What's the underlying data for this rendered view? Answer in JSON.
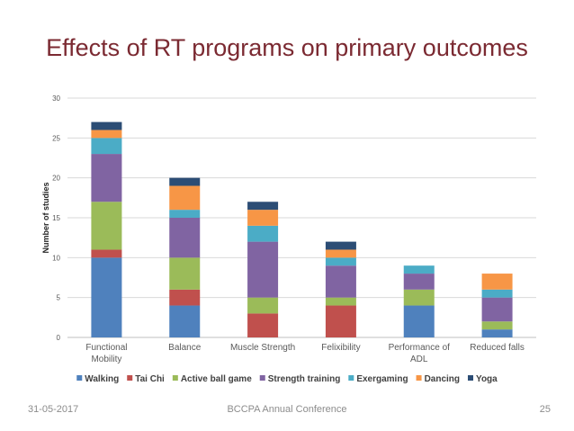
{
  "slide": {
    "title": "Effects of RT programs on primary outcomes",
    "footer_date": "31-05-2017",
    "footer_center": "BCCPA Annual Conference",
    "page_number": "25"
  },
  "colors": {
    "title": "#7b2a32",
    "Walking": "#4f81bd",
    "Tai Chi": "#c0504d",
    "Active ball game": "#9bbb59",
    "Strength training": "#8064a2",
    "Exergaming": "#4bacc6",
    "Dancing": "#f79646",
    "Yoga": "#2c4d75"
  },
  "chart_data": {
    "type": "bar",
    "stacked": true,
    "title": "",
    "xlabel": "",
    "ylabel": "Number of studies",
    "ylim": [
      0,
      30
    ],
    "yticks": [
      0,
      5,
      10,
      15,
      20,
      25,
      30
    ],
    "grid": true,
    "legend_position": "bottom",
    "categories": [
      [
        "Functional",
        "Mobility"
      ],
      [
        "Balance"
      ],
      [
        "Muscle Strength"
      ],
      [
        "Felixibility"
      ],
      [
        "Performance of",
        "ADL"
      ],
      [
        "Reduced falls"
      ]
    ],
    "series": [
      {
        "name": "Walking",
        "values": [
          10,
          4,
          0,
          0,
          4,
          1
        ]
      },
      {
        "name": "Tai Chi",
        "values": [
          1,
          2,
          3,
          4,
          0,
          0
        ]
      },
      {
        "name": "Active ball game",
        "values": [
          6,
          4,
          2,
          1,
          2,
          1
        ]
      },
      {
        "name": "Strength training",
        "values": [
          6,
          5,
          7,
          4,
          2,
          3
        ]
      },
      {
        "name": "Exergaming",
        "values": [
          2,
          1,
          2,
          1,
          1,
          1
        ]
      },
      {
        "name": "Dancing",
        "values": [
          1,
          3,
          2,
          1,
          0,
          2
        ]
      },
      {
        "name": "Yoga",
        "values": [
          1,
          1,
          1,
          1,
          0,
          0
        ]
      }
    ]
  }
}
